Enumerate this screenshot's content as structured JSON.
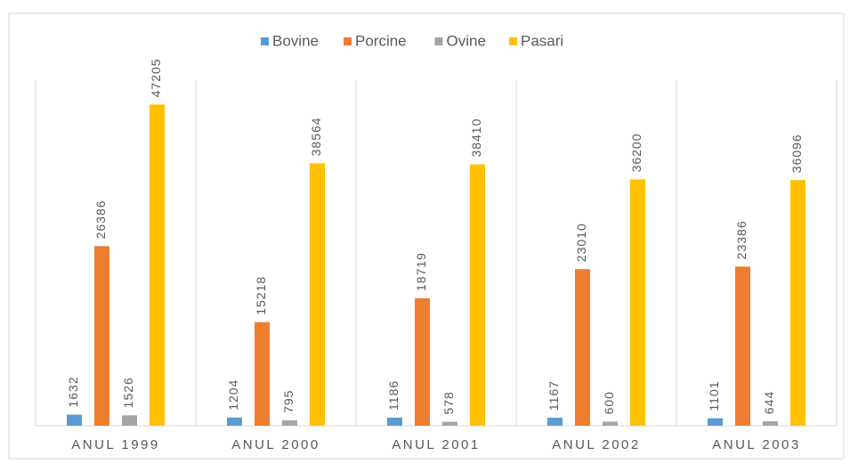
{
  "chart_data": {
    "type": "bar",
    "categories": [
      "ANUL 1999",
      "ANUL 2000",
      "ANUL 2001",
      "ANUL 2002",
      "ANUL 2003"
    ],
    "series": [
      {
        "name": "Bovine",
        "color": "#5b9bd5",
        "values": [
          1632,
          1204,
          1186,
          1167,
          1101
        ]
      },
      {
        "name": "Porcine",
        "color": "#ed7d31",
        "values": [
          26386,
          15218,
          18719,
          23010,
          23386
        ]
      },
      {
        "name": "Ovine",
        "color": "#a5a5a5",
        "values": [
          1526,
          795,
          578,
          600,
          644
        ]
      },
      {
        "name": "Pasari",
        "color": "#ffc000",
        "values": [
          47205,
          38564,
          38410,
          36200,
          36096
        ]
      }
    ],
    "ylim": [
      0,
      50000
    ],
    "legend": "top"
  }
}
